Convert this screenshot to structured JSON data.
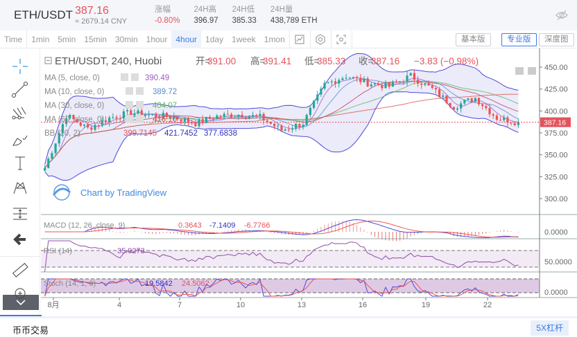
{
  "header": {
    "pair": "ETH/USDT",
    "price": "387.16",
    "cny": "≈ 2679.14 CNY",
    "stats": [
      {
        "label": "涨幅",
        "value": "-0.80%",
        "red": true
      },
      {
        "label": "24H高",
        "value": "396.97"
      },
      {
        "label": "24H低",
        "value": "385.33"
      },
      {
        "label": "24H量",
        "value": "438,789 ETH"
      }
    ]
  },
  "toolbar": {
    "intervals": [
      "Time",
      "1min",
      "5min",
      "15min",
      "30min",
      "1hour",
      "4hour",
      "1day",
      "1week",
      "1mon"
    ],
    "active": "4hour",
    "icons": [
      "indicator-icon",
      "settings-icon",
      "fullscreen-icon"
    ],
    "views": [
      "基本版",
      "专业版",
      "深度图"
    ],
    "active_view": "专业版"
  },
  "sidebar": {
    "tools": [
      "crosshair-icon",
      "trend-line-icon",
      "pitchfork-icon",
      "brush-icon",
      "text-icon",
      "pattern-icon",
      "measure-lines-icon",
      "back-arrow-icon",
      "ruler-icon",
      "zoom-in-icon"
    ]
  },
  "legend": {
    "title": "ETH/USDT, 240, Huobi",
    "open_label": "开=",
    "open": "391.00",
    "high_label": "高=",
    "high": "391.41",
    "low_label": "低=",
    "low": "385.33",
    "close_label": "收=",
    "close": "387.16",
    "change": "−3.83 (−0.98%)",
    "ma": [
      {
        "name": "MA (5, close, 0)",
        "value": "390.49",
        "color": "#9c5fc4"
      },
      {
        "name": "MA (10, close, 0)",
        "value": "389.72",
        "color": "#5b8bd1"
      },
      {
        "name": "MA (30, close, 0)",
        "value": "404.07",
        "color": "#5cb85c"
      },
      {
        "name": "MA (60, close, 0)",
        "value": "416.10",
        "color": "#d9534f"
      }
    ],
    "bb": {
      "name": "BB (20, 2)",
      "values": [
        "399.7145",
        "421.7452",
        "377.6838"
      ]
    },
    "watermark": "Chart by TradingView"
  },
  "indicators": {
    "macd": {
      "name": "MACD (12, 26, close, 9)",
      "values": [
        "0.3643",
        "-7.1409",
        "-6.7766"
      ]
    },
    "rsi": {
      "name": "RSI (14)",
      "value": "35.9273"
    },
    "stoch": {
      "name": "Stoch (14, 1, 3)",
      "values": [
        "19.5842",
        "24.5062"
      ]
    }
  },
  "chart_data": {
    "type": "candlestick",
    "price_axis": [
      "450.00",
      "425.00",
      "400.00",
      "375.00",
      "350.00",
      "325.00",
      "300.00"
    ],
    "last_price": "387.16",
    "macd_axis": "0.0000",
    "rsi_axis": "50.0000",
    "stoch_axis": "0.0000",
    "x_labels": [
      "8月",
      "4",
      "7",
      "10",
      "13",
      "16",
      "19",
      "22"
    ],
    "daily_close": [
      335,
      395,
      380,
      392,
      398,
      395,
      393,
      386,
      394,
      396,
      393,
      378,
      386,
      430,
      440,
      432,
      428,
      440,
      425,
      405,
      415,
      392,
      387
    ],
    "colors": {
      "up": "#26a69a",
      "down": "#ef5350"
    }
  },
  "bottom": {
    "tab": "币币交易",
    "leverage": "5X杠杆"
  }
}
